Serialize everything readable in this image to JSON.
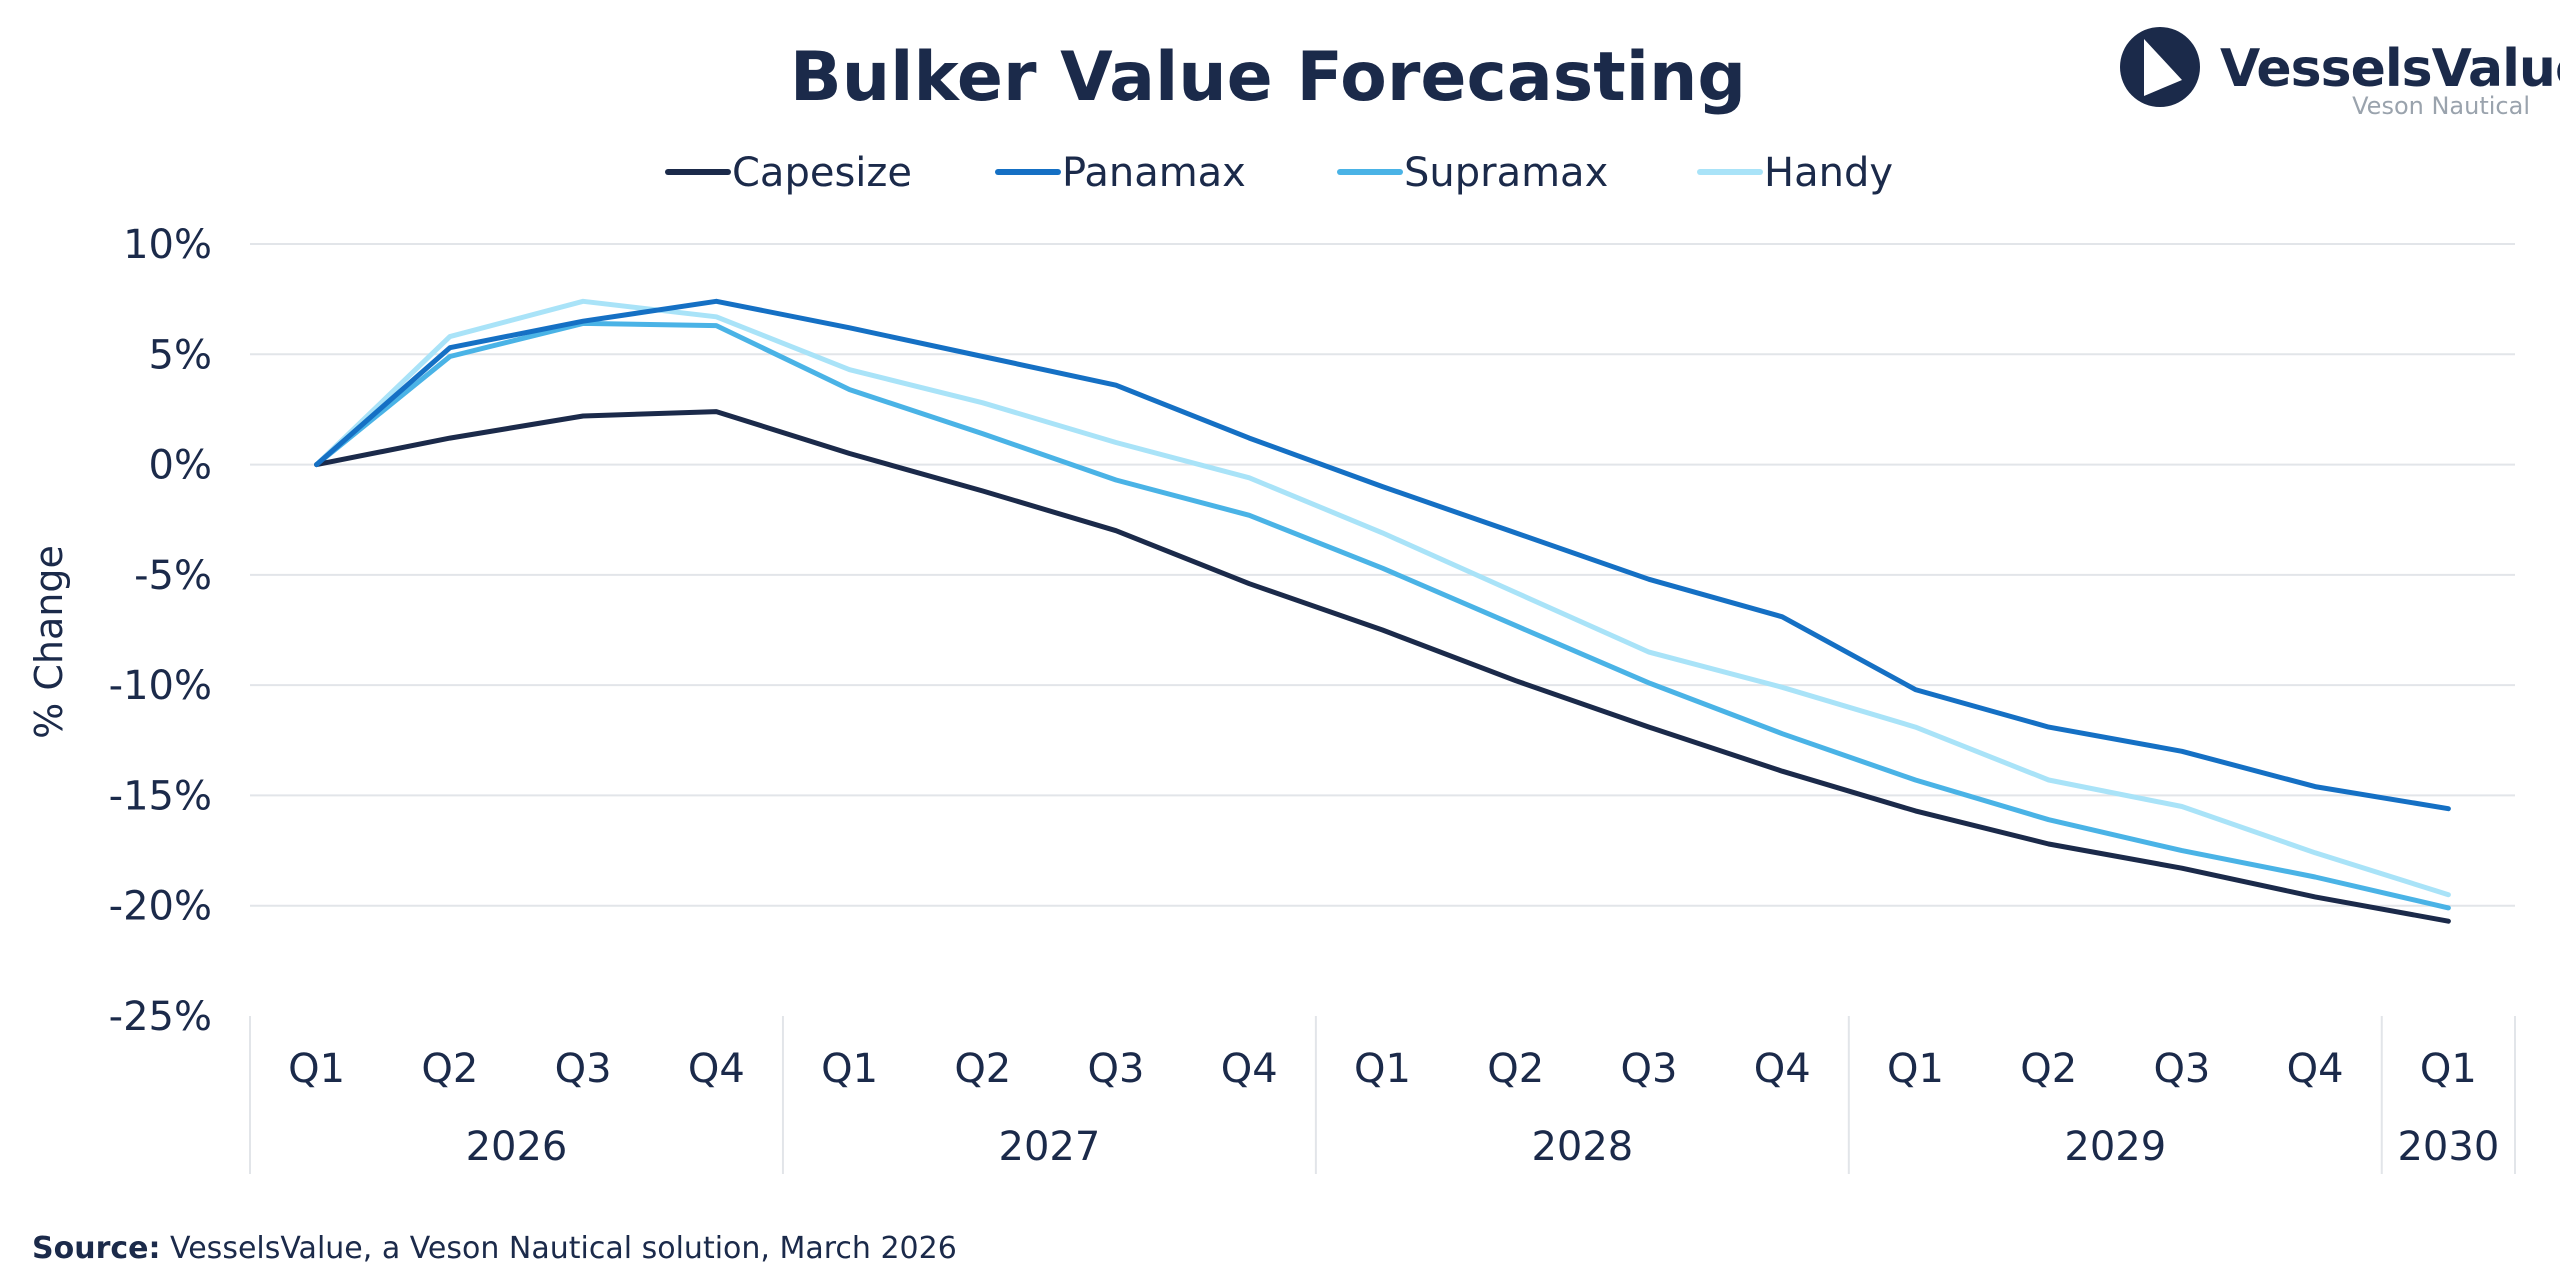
{
  "chart_data": {
    "type": "line",
    "title": "Bulker Value Forecasting",
    "xlabel": "",
    "ylabel": "% Change",
    "ylim": [
      -25,
      10
    ],
    "y_ticks": [
      "10%",
      "5%",
      "0%",
      "-5%",
      "-10%",
      "-15%",
      "-20%",
      "-25%"
    ],
    "grid": true,
    "legend_position": "top",
    "categories": [
      "Q1",
      "Q2",
      "Q3",
      "Q4",
      "Q1",
      "Q2",
      "Q3",
      "Q4",
      "Q1",
      "Q2",
      "Q3",
      "Q4",
      "Q1",
      "Q2",
      "Q3",
      "Q4",
      "Q1"
    ],
    "year_groups": [
      {
        "label": "2026",
        "count": 4
      },
      {
        "label": "2027",
        "count": 4
      },
      {
        "label": "2028",
        "count": 4
      },
      {
        "label": "2029",
        "count": 4
      },
      {
        "label": "2030",
        "count": 1
      }
    ],
    "series": [
      {
        "name": "Capesize",
        "color": "#1b2a4a",
        "values": [
          0,
          1.2,
          2.2,
          2.4,
          0.5,
          -1.2,
          -3.0,
          -5.4,
          -7.5,
          -9.8,
          -11.9,
          -13.9,
          -15.7,
          -17.2,
          -18.3,
          -19.6,
          -20.7
        ]
      },
      {
        "name": "Panamax",
        "color": "#1570c4",
        "values": [
          0,
          5.3,
          6.5,
          7.4,
          6.2,
          4.9,
          3.6,
          1.2,
          -1.0,
          -3.1,
          -5.2,
          -6.9,
          -10.2,
          -11.9,
          -13.0,
          -14.6,
          -15.6
        ]
      },
      {
        "name": "Supramax",
        "color": "#4ab3e6",
        "values": [
          0,
          4.9,
          6.4,
          6.3,
          3.4,
          1.4,
          -0.7,
          -2.3,
          -4.7,
          -7.3,
          -9.9,
          -12.2,
          -14.3,
          -16.1,
          -17.5,
          -18.7,
          -20.1
        ]
      },
      {
        "name": "Handy",
        "color": "#a9e3f8",
        "values": [
          0,
          5.8,
          7.4,
          6.7,
          4.3,
          2.8,
          1.0,
          -0.6,
          -3.1,
          -5.8,
          -8.5,
          -10.1,
          -11.9,
          -14.3,
          -15.5,
          -17.6,
          -19.5
        ]
      }
    ]
  },
  "logo": {
    "name": "VesselsValue",
    "subtitle": "Veson Nautical"
  },
  "source": {
    "label": "Source:",
    "text": " VesselsValue, a Veson Nautical solution, March 2026"
  },
  "colors": {
    "brand_navy": "#1b2a4a",
    "grid": "#e2e5e9"
  }
}
